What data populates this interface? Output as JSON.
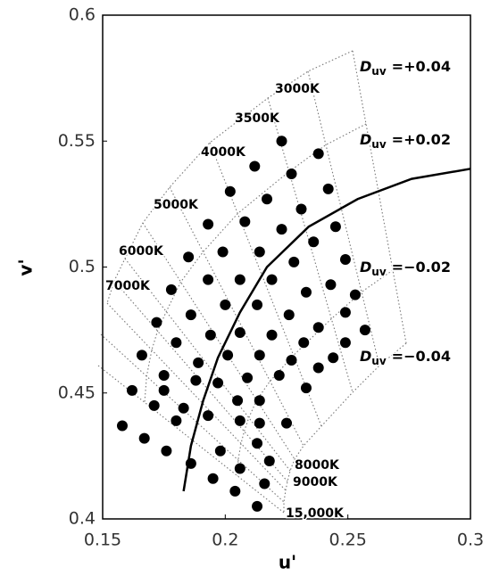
{
  "chart_data": {
    "type": "scatter",
    "x_label": "u'",
    "y_label": "v'",
    "xlim": [
      0.15,
      0.3
    ],
    "xticks": [
      0.15,
      0.2,
      0.25,
      0.3
    ],
    "ylim": [
      0.4,
      0.6
    ],
    "yticks": [
      0.4,
      0.45,
      0.5,
      0.55,
      0.6
    ],
    "series": [
      {
        "type": "scatter",
        "color": "#000000",
        "x": [
          0.223,
          0.212,
          0.238,
          0.227,
          0.202,
          0.217,
          0.242,
          0.231,
          0.193,
          0.208,
          0.223,
          0.236,
          0.245,
          0.185,
          0.199,
          0.214,
          0.228,
          0.249,
          0.178,
          0.193,
          0.206,
          0.219,
          0.233,
          0.243,
          0.253,
          0.172,
          0.186,
          0.2,
          0.213,
          0.226,
          0.238,
          0.249,
          0.257,
          0.166,
          0.18,
          0.194,
          0.206,
          0.219,
          0.232,
          0.244,
          0.249,
          0.162,
          0.175,
          0.189,
          0.201,
          0.214,
          0.227,
          0.238,
          0.175,
          0.188,
          0.209,
          0.222,
          0.233,
          0.171,
          0.183,
          0.197,
          0.205,
          0.214,
          0.225,
          0.158,
          0.167,
          0.18,
          0.193,
          0.206,
          0.214,
          0.176,
          0.198,
          0.213,
          0.186,
          0.218,
          0.195,
          0.206,
          0.216,
          0.204,
          0.213
        ],
        "y": [
          0.55,
          0.54,
          0.545,
          0.537,
          0.53,
          0.527,
          0.531,
          0.523,
          0.517,
          0.518,
          0.515,
          0.51,
          0.516,
          0.504,
          0.506,
          0.506,
          0.502,
          0.503,
          0.491,
          0.495,
          0.495,
          0.495,
          0.49,
          0.493,
          0.489,
          0.478,
          0.481,
          0.485,
          0.485,
          0.481,
          0.476,
          0.482,
          0.475,
          0.465,
          0.47,
          0.473,
          0.474,
          0.473,
          0.47,
          0.464,
          0.47,
          0.451,
          0.457,
          0.462,
          0.465,
          0.465,
          0.463,
          0.46,
          0.451,
          0.455,
          0.456,
          0.457,
          0.452,
          0.445,
          0.444,
          0.454,
          0.447,
          0.447,
          0.438,
          0.437,
          0.432,
          0.439,
          0.441,
          0.439,
          0.438,
          0.427,
          0.427,
          0.43,
          0.422,
          0.423,
          0.416,
          0.42,
          0.414,
          0.411,
          0.405
        ]
      },
      {
        "type": "line",
        "color": "#000000",
        "x": [
          0.183,
          0.186,
          0.191,
          0.197,
          0.206,
          0.217,
          0.234,
          0.254,
          0.276,
          0.3
        ],
        "y": [
          0.411,
          0.429,
          0.447,
          0.464,
          0.482,
          0.5,
          0.516,
          0.527,
          0.535,
          0.539
        ]
      }
    ],
    "cct_labels": [
      "3000K",
      "3500K",
      "4000K",
      "5000K",
      "6000K",
      "7000K",
      "8000K",
      "9000K",
      "15,000K"
    ],
    "duv_symbol": "D",
    "duv_subscript": "uv",
    "duv_labels": [
      "=+0.04",
      "=+0.02",
      "=−0.02",
      "=−0.04"
    ]
  }
}
